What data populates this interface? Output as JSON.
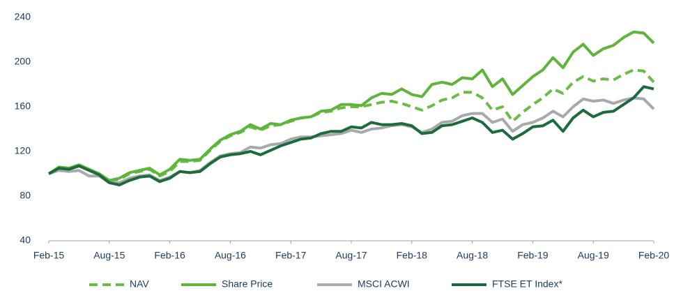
{
  "chart_data": {
    "type": "line",
    "categories": [
      "Feb-15",
      null,
      null,
      null,
      null,
      null,
      "Aug-15",
      null,
      null,
      null,
      null,
      null,
      "Feb-16",
      null,
      null,
      null,
      null,
      null,
      "Aug-16",
      null,
      null,
      null,
      null,
      null,
      "Feb-17",
      null,
      null,
      null,
      null,
      null,
      "Aug-17",
      null,
      null,
      null,
      null,
      null,
      "Feb-18",
      null,
      null,
      null,
      null,
      null,
      "Aug-18",
      null,
      null,
      null,
      null,
      null,
      "Feb-19",
      null,
      null,
      null,
      null,
      null,
      "Aug-19",
      null,
      null,
      null,
      null,
      null,
      "Feb-20"
    ],
    "series": [
      {
        "name": "NAV",
        "color": "#6dbb45",
        "line_style": "dashed",
        "values": [
          100,
          105,
          105,
          107,
          104,
          100,
          94,
          95,
          100,
          102,
          104,
          98,
          102,
          111,
          111,
          112,
          121,
          129,
          134,
          137,
          142,
          139,
          143,
          144,
          147,
          150,
          151,
          155,
          156,
          159,
          160,
          160,
          162,
          164,
          165,
          163,
          160,
          157,
          161,
          166,
          168,
          173,
          173,
          168,
          157,
          160,
          147,
          155,
          162,
          168,
          176,
          172,
          182,
          187,
          183,
          185,
          184,
          189,
          193,
          192,
          182
        ]
      },
      {
        "name": "Share Price",
        "color": "#5db53c",
        "line_style": "solid",
        "values": [
          100,
          106,
          105,
          108,
          104,
          100,
          94,
          96,
          101,
          103,
          105,
          99,
          104,
          113,
          112,
          113,
          122,
          130,
          135,
          138,
          144,
          140,
          145,
          144,
          148,
          150,
          151,
          156,
          157,
          162,
          162,
          161,
          168,
          172,
          171,
          176,
          171,
          169,
          180,
          182,
          180,
          186,
          185,
          193,
          178,
          185,
          171,
          179,
          187,
          193,
          204,
          195,
          209,
          216,
          206,
          212,
          215,
          222,
          227,
          226,
          217
        ]
      },
      {
        "name": "MSCI ACWI",
        "color": "#a7a9ac",
        "line_style": "solid",
        "values": [
          100,
          103,
          102,
          103,
          98,
          98,
          92,
          92,
          96,
          98,
          99,
          94,
          97,
          102,
          101,
          103,
          110,
          116,
          118,
          119,
          124,
          123,
          126,
          127,
          131,
          133,
          133,
          134,
          135,
          136,
          139,
          137,
          140,
          141,
          143,
          144,
          142,
          137,
          140,
          146,
          147,
          152,
          154,
          154,
          146,
          149,
          138,
          144,
          146,
          150,
          156,
          151,
          160,
          167,
          165,
          166,
          163,
          166,
          168,
          167,
          158
        ]
      },
      {
        "name": "FTSE ET Index*",
        "color": "#1b6b3e",
        "line_style": "solid",
        "values": [
          100,
          105,
          104,
          107,
          103,
          99,
          92,
          90,
          94,
          97,
          98,
          93,
          96,
          102,
          101,
          102,
          109,
          115,
          117,
          118,
          120,
          117,
          121,
          125,
          128,
          131,
          132,
          136,
          138,
          138,
          142,
          141,
          146,
          144,
          144,
          145,
          143,
          136,
          137,
          143,
          144,
          147,
          150,
          146,
          137,
          139,
          131,
          136,
          142,
          143,
          148,
          138,
          150,
          157,
          151,
          155,
          156,
          162,
          168,
          178,
          176
        ]
      }
    ],
    "ylim": [
      40,
      240
    ],
    "yticks": [
      40,
      80,
      120,
      160,
      200,
      240
    ],
    "grid": false
  }
}
